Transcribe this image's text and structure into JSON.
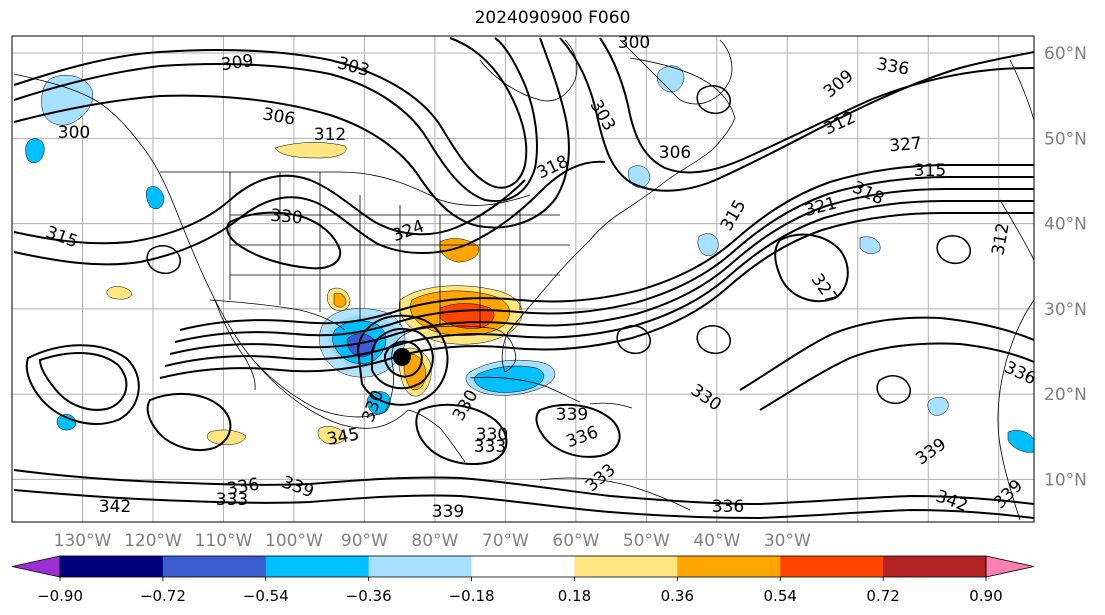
{
  "title": "2024090900 F060",
  "map": {
    "projection": "PlateCarree",
    "lon_range": [
      -140,
      5
    ],
    "lat_range": [
      5,
      62
    ],
    "grid": true,
    "lon_labels": [
      "130°W",
      "120°W",
      "110°W",
      "100°W",
      "90°W",
      "80°W",
      "70°W",
      "60°W",
      "50°W",
      "40°W",
      "30°W"
    ],
    "lat_labels": [
      "10°N",
      "20°N",
      "30°N",
      "40°N",
      "50°N",
      "60°N"
    ],
    "contour_labels": [
      {
        "text": "309"
      },
      {
        "text": "303"
      },
      {
        "text": "306"
      },
      {
        "text": "300"
      },
      {
        "text": "312"
      },
      {
        "text": "315"
      },
      {
        "text": "330"
      },
      {
        "text": "324"
      },
      {
        "text": "318"
      },
      {
        "text": "303"
      },
      {
        "text": "306"
      },
      {
        "text": "300"
      },
      {
        "text": "309"
      },
      {
        "text": "312"
      },
      {
        "text": "327"
      },
      {
        "text": "315"
      },
      {
        "text": "318"
      },
      {
        "text": "321"
      },
      {
        "text": "315"
      },
      {
        "text": "327"
      },
      {
        "text": "312"
      },
      {
        "text": "330"
      },
      {
        "text": "336"
      },
      {
        "text": "345"
      },
      {
        "text": "330"
      },
      {
        "text": "333"
      },
      {
        "text": "336"
      },
      {
        "text": "333"
      },
      {
        "text": "339"
      },
      {
        "text": "342"
      },
      {
        "text": "333"
      },
      {
        "text": "336"
      },
      {
        "text": "339"
      },
      {
        "text": "336"
      },
      {
        "text": "339"
      },
      {
        "text": "342"
      },
      {
        "text": "339"
      },
      {
        "text": "339"
      },
      {
        "text": "330"
      },
      {
        "text": "330"
      },
      {
        "text": "336"
      }
    ]
  },
  "colorbar": {
    "levels": [
      -0.9,
      -0.72,
      -0.54,
      -0.36,
      -0.18,
      0.18,
      0.36,
      0.54,
      0.72,
      0.9
    ],
    "tick_labels": [
      "−0.90",
      "−0.72",
      "−0.54",
      "−0.36",
      "−0.18",
      "0.18",
      "0.36",
      "0.54",
      "0.72",
      "0.90"
    ],
    "colors": [
      "#9a2fd6",
      "#00007f",
      "#3b5bd0",
      "#00bfff",
      "#a8e0ff",
      "#ffffff",
      "#ffe680",
      "#ffa500",
      "#ff4500",
      "#b22222",
      "#ff80b0"
    ]
  }
}
